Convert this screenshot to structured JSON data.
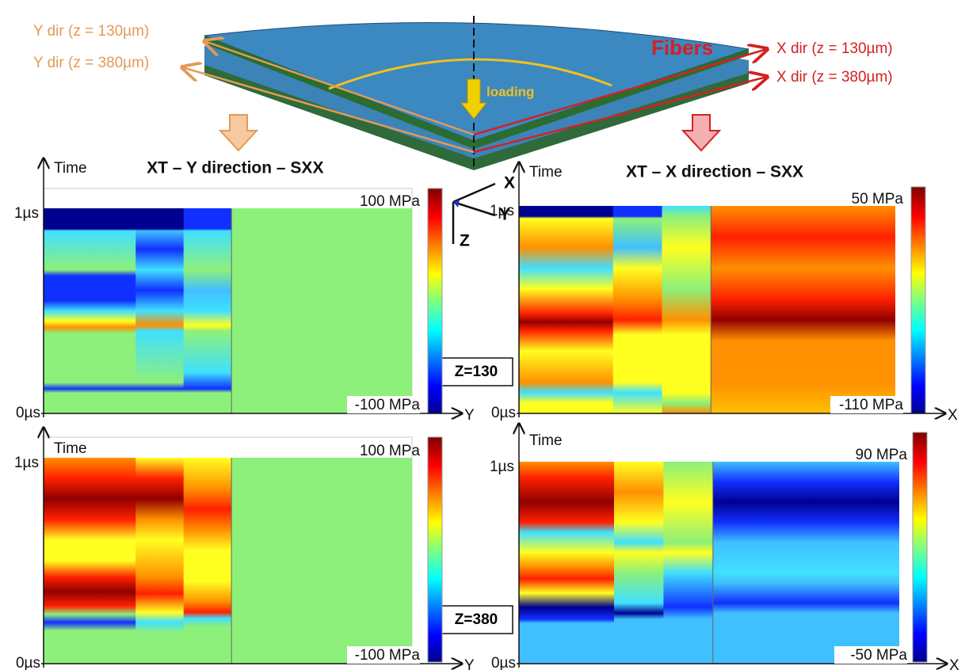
{
  "diagram": {
    "left_labels": [
      "Y dir (z = 130µm)",
      "Y dir (z = 380µm)"
    ],
    "fibers": "Fibers",
    "right_labels": [
      "X dir (z = 130µm)",
      "X dir (z = 380µm)"
    ],
    "loading": "loading"
  },
  "triad": [
    "X",
    "Y",
    "Z"
  ],
  "z_labels": [
    "Z=130",
    "Z=380"
  ],
  "panels": [
    {
      "title": "XT – Y direction – SXX",
      "time_label": "Time",
      "t_top": "1µs",
      "t_bottom": "0µs",
      "x_label": "Y",
      "cbar_max": "100 MPa",
      "cbar_min": "-100 MPa"
    },
    {
      "title": "XT – X direction – SXX",
      "time_label": "Time",
      "t_top": "1µs",
      "t_bottom": "0µs",
      "x_label": "X",
      "cbar_max": "50 MPa",
      "cbar_min": "-110 MPa"
    },
    {
      "time_label": "Time",
      "t_top": "1µs",
      "t_bottom": "0µs",
      "x_label": "Y",
      "cbar_max": "100 MPa",
      "cbar_min": "-100 MPa"
    },
    {
      "time_label": "Time",
      "t_top": "1µs",
      "t_bottom": "0µs",
      "x_label": "X",
      "cbar_max": "90 MPa",
      "cbar_min": "-50 MPa"
    }
  ]
}
